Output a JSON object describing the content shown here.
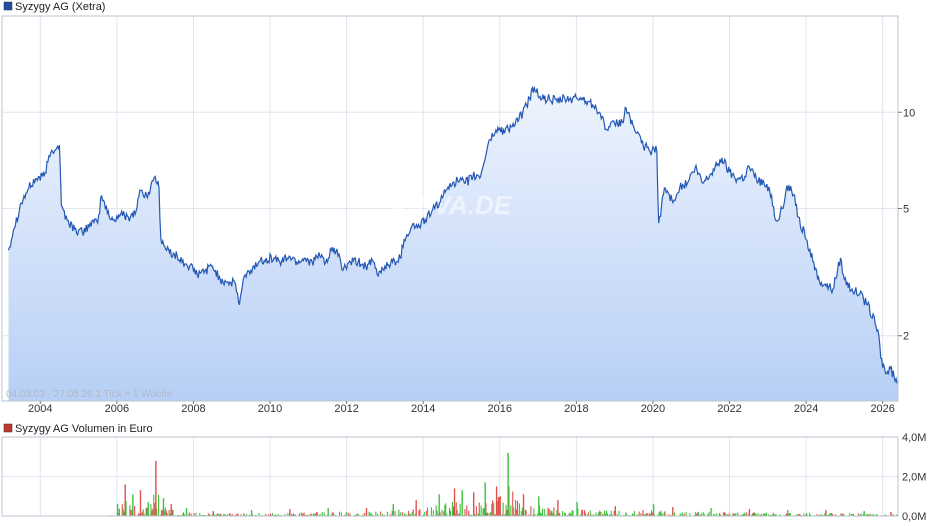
{
  "chart_data": [
    {
      "type": "area",
      "title": "Syzygy AG (Xetra)",
      "legend_color": "#1f4fa0",
      "line_color": "#2458b4",
      "fill_color_top": "#eef4fd",
      "fill_color_bottom": "#b7cff6",
      "y_scale": "log",
      "ylim": [
        1.25,
        20
      ],
      "y_ticks": [
        {
          "value": 2,
          "label": "2"
        },
        {
          "value": 5,
          "label": "5"
        },
        {
          "value": 10,
          "label": "10"
        }
      ],
      "xlim": [
        2003.0,
        2026.4
      ],
      "x_ticks": [
        "2004",
        "2006",
        "2008",
        "2010",
        "2012",
        "2014",
        "2016",
        "2018",
        "2020",
        "2022",
        "2024",
        "2026"
      ],
      "x_tick_values": [
        2004,
        2006,
        2008,
        2010,
        2012,
        2014,
        2016,
        2018,
        2020,
        2022,
        2024,
        2026
      ],
      "date_range_note": "04.03.03 - 27.05.26   1 Tick = 1 Woche",
      "watermark": "ARIVA.DE",
      "grid": true,
      "series": [
        {
          "name": "Syzygy AG (Xetra)",
          "points": [
            [
              2003.17,
              3.7
            ],
            [
              2003.3,
              4.3
            ],
            [
              2003.5,
              5.2
            ],
            [
              2003.7,
              5.8
            ],
            [
              2003.9,
              6.2
            ],
            [
              2004.1,
              6.3
            ],
            [
              2004.2,
              7.0
            ],
            [
              2004.3,
              7.6
            ],
            [
              2004.5,
              7.9
            ],
            [
              2004.55,
              5.1
            ],
            [
              2004.7,
              4.6
            ],
            [
              2004.9,
              4.3
            ],
            [
              2005.1,
              4.2
            ],
            [
              2005.3,
              4.5
            ],
            [
              2005.5,
              4.5
            ],
            [
              2005.6,
              5.5
            ],
            [
              2005.8,
              4.7
            ],
            [
              2005.9,
              4.6
            ],
            [
              2006.1,
              4.8
            ],
            [
              2006.3,
              4.7
            ],
            [
              2006.5,
              4.9
            ],
            [
              2006.6,
              5.7
            ],
            [
              2006.8,
              5.4
            ],
            [
              2006.9,
              6.0
            ],
            [
              2007.0,
              6.3
            ],
            [
              2007.1,
              5.8
            ],
            [
              2007.15,
              4.0
            ],
            [
              2007.3,
              3.7
            ],
            [
              2007.5,
              3.6
            ],
            [
              2007.7,
              3.4
            ],
            [
              2007.9,
              3.3
            ],
            [
              2008.1,
              3.1
            ],
            [
              2008.3,
              3.2
            ],
            [
              2008.5,
              3.3
            ],
            [
              2008.7,
              3.0
            ],
            [
              2008.9,
              2.95
            ],
            [
              2009.1,
              2.9
            ],
            [
              2009.2,
              2.5
            ],
            [
              2009.3,
              3.0
            ],
            [
              2009.5,
              3.2
            ],
            [
              2009.7,
              3.4
            ],
            [
              2009.9,
              3.5
            ],
            [
              2010.1,
              3.5
            ],
            [
              2010.3,
              3.4
            ],
            [
              2010.5,
              3.55
            ],
            [
              2010.7,
              3.4
            ],
            [
              2010.9,
              3.5
            ],
            [
              2011.1,
              3.4
            ],
            [
              2011.3,
              3.55
            ],
            [
              2011.5,
              3.4
            ],
            [
              2011.6,
              3.7
            ],
            [
              2011.8,
              3.6
            ],
            [
              2011.9,
              3.2
            ],
            [
              2012.1,
              3.4
            ],
            [
              2012.3,
              3.4
            ],
            [
              2012.5,
              3.3
            ],
            [
              2012.7,
              3.4
            ],
            [
              2012.8,
              3.1
            ],
            [
              2013.0,
              3.3
            ],
            [
              2013.2,
              3.4
            ],
            [
              2013.4,
              3.5
            ],
            [
              2013.5,
              4.0
            ],
            [
              2013.7,
              4.4
            ],
            [
              2013.9,
              4.4
            ],
            [
              2014.1,
              4.7
            ],
            [
              2014.3,
              5.0
            ],
            [
              2014.5,
              5.4
            ],
            [
              2014.7,
              6.0
            ],
            [
              2014.9,
              6.1
            ],
            [
              2015.1,
              6.0
            ],
            [
              2015.3,
              6.3
            ],
            [
              2015.5,
              6.3
            ],
            [
              2015.7,
              8.0
            ],
            [
              2015.9,
              8.8
            ],
            [
              2016.1,
              8.8
            ],
            [
              2016.3,
              9.0
            ],
            [
              2016.5,
              9.5
            ],
            [
              2016.7,
              10.5
            ],
            [
              2016.9,
              12.0
            ],
            [
              2017.1,
              11.0
            ],
            [
              2017.3,
              11.0
            ],
            [
              2017.5,
              10.8
            ],
            [
              2017.7,
              11.0
            ],
            [
              2017.9,
              11.0
            ],
            [
              2018.1,
              11.1
            ],
            [
              2018.3,
              10.8
            ],
            [
              2018.5,
              10.5
            ],
            [
              2018.6,
              10.0
            ],
            [
              2018.8,
              8.8
            ],
            [
              2019.0,
              9.2
            ],
            [
              2019.2,
              9.3
            ],
            [
              2019.3,
              10.3
            ],
            [
              2019.5,
              9.0
            ],
            [
              2019.7,
              8.0
            ],
            [
              2019.9,
              7.6
            ],
            [
              2020.1,
              7.6
            ],
            [
              2020.15,
              4.5
            ],
            [
              2020.3,
              5.8
            ],
            [
              2020.5,
              5.3
            ],
            [
              2020.7,
              5.8
            ],
            [
              2020.9,
              6.0
            ],
            [
              2021.1,
              6.7
            ],
            [
              2021.3,
              6.0
            ],
            [
              2021.5,
              6.4
            ],
            [
              2021.7,
              6.9
            ],
            [
              2021.8,
              7.2
            ],
            [
              2022.0,
              6.5
            ],
            [
              2022.2,
              6.2
            ],
            [
              2022.4,
              6.3
            ],
            [
              2022.5,
              6.8
            ],
            [
              2022.7,
              6.2
            ],
            [
              2022.9,
              6.0
            ],
            [
              2023.1,
              5.5
            ],
            [
              2023.2,
              4.6
            ],
            [
              2023.4,
              5.0
            ],
            [
              2023.5,
              5.9
            ],
            [
              2023.7,
              5.5
            ],
            [
              2023.8,
              4.7
            ],
            [
              2024.0,
              4.0
            ],
            [
              2024.2,
              3.4
            ],
            [
              2024.3,
              3.0
            ],
            [
              2024.5,
              2.9
            ],
            [
              2024.7,
              2.8
            ],
            [
              2024.9,
              3.5
            ],
            [
              2025.0,
              3.0
            ],
            [
              2025.2,
              2.8
            ],
            [
              2025.4,
              2.7
            ],
            [
              2025.6,
              2.5
            ],
            [
              2025.8,
              2.2
            ],
            [
              2025.9,
              2.0
            ],
            [
              2025.95,
              1.7
            ],
            [
              2026.1,
              1.52
            ],
            [
              2026.2,
              1.58
            ],
            [
              2026.3,
              1.48
            ],
            [
              2026.4,
              1.43
            ]
          ]
        }
      ]
    },
    {
      "type": "bar",
      "title": "Syzygy AG Volumen in Euro",
      "legend_color": "#c0392b",
      "bar_colors": [
        "#3cc43c",
        "#e05050"
      ],
      "ylim": [
        0,
        4.0
      ],
      "y_ticks": [
        "4,0M",
        "2,0M",
        "0,0M"
      ],
      "y_tick_values": [
        4.0,
        2.0,
        0.0
      ],
      "xlim": [
        2003.0,
        2026.4
      ],
      "volume_start": 2005.8,
      "series": [
        {
          "name": "Syzygy AG Volumen in Euro",
          "x": [
            2006.0,
            2006.2,
            2006.4,
            2006.6,
            2006.8,
            2007.0,
            2007.2,
            2007.4,
            2007.8,
            2008.5,
            2009.5,
            2010.5,
            2011.5,
            2012.5,
            2013.2,
            2013.8,
            2014.4,
            2014.8,
            2015.0,
            2015.3,
            2015.6,
            2015.9,
            2016.2,
            2016.6,
            2017.0,
            2017.5,
            2018.0,
            2019.0,
            2020.0,
            2020.5,
            2021.5,
            2022.5,
            2023.5,
            2024.5,
            2025.5,
            2026.2
          ],
          "values": [
            0.6,
            1.6,
            1.1,
            1.3,
            0.7,
            2.8,
            0.9,
            0.6,
            0.4,
            0.25,
            0.3,
            0.35,
            0.4,
            0.4,
            0.6,
            0.8,
            1.1,
            1.4,
            1.3,
            1.2,
            1.7,
            1.5,
            3.2,
            1.1,
            1.0,
            0.8,
            0.7,
            0.5,
            0.6,
            0.45,
            0.4,
            0.35,
            0.3,
            0.3,
            0.25,
            0.2
          ]
        }
      ]
    }
  ]
}
